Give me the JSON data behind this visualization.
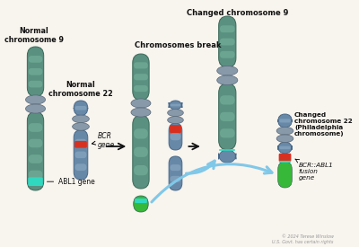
{
  "bg_color": "#f8f4ee",
  "chr9_body": "#5a9080",
  "chr9_stripe": "#7ab8a0",
  "chr9_edge": "#3a6858",
  "chr22_body": "#6888a8",
  "chr22_stripe": "#90b0c8",
  "chr22_edge": "#486888",
  "cent_color": "#8899aa",
  "cent_edge": "#556677",
  "abl1_color": "#30d8c0",
  "bcr_color": "#d83020",
  "fusion_green": "#38b838",
  "arrow_black": "#111111",
  "arrow_blue": "#80c8e8",
  "text_color": "#111111",
  "copyright_color": "#999999",
  "labels": {
    "p1_chr9": "Normal\nchromosome 9",
    "p1_chr22": "Normal\nchromosome 22",
    "p2_title": "Chromosomes break",
    "p3_chr9": "Changed chromosome 9",
    "p3_chr22": "Changed\nchromosome 22\n(Philadelphia\nchromosome)",
    "abl1": "ABL1 gene",
    "bcr": "BCR\ngene",
    "fusion": "BCR::ABL1\nfusion\ngene",
    "copyright": "© 2024 Terese Winslow\nU.S. Govt. has certain rights"
  }
}
